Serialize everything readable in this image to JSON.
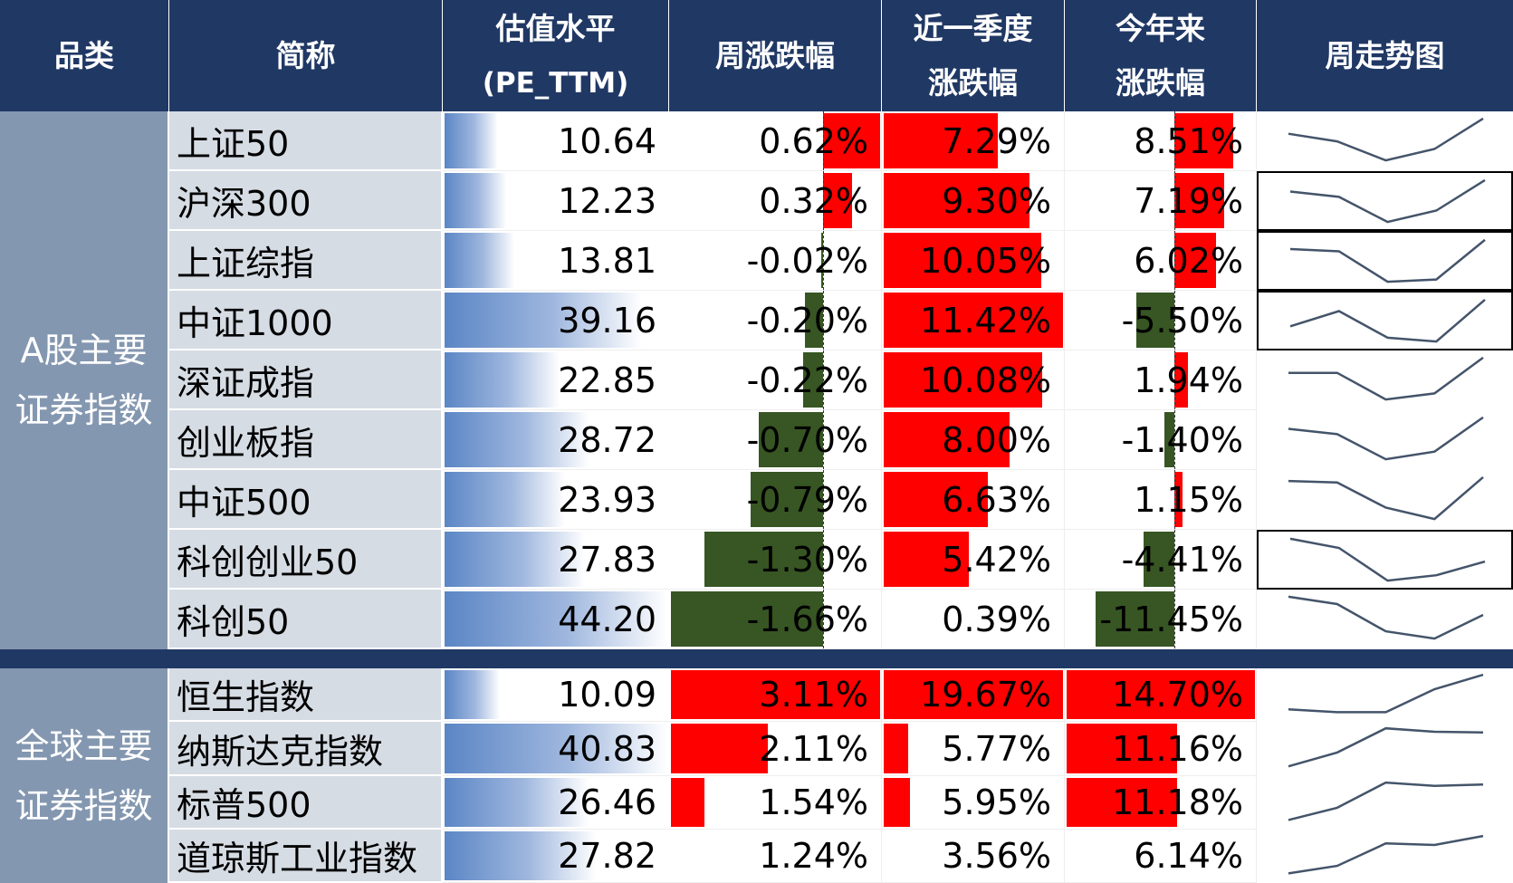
{
  "colors": {
    "header_bg": "#203864",
    "category_bg": "#8497b0",
    "name_bg": "#d6dce4",
    "positive": "#ff0000",
    "negative": "#375623",
    "pe_bar": "#5b86c5",
    "sparkline": "#44546a"
  },
  "header": {
    "category": "品类",
    "name": "简称",
    "pe_line1": "估值水平",
    "pe_line2": "(PE_TTM)",
    "week": "周涨跌幅",
    "quarter_line1": "近一季度",
    "quarter_line2": "涨跌幅",
    "ytd_line1": "今年来",
    "ytd_line2": "涨跌幅",
    "trend": "周走势图"
  },
  "groups": [
    {
      "category_line1": "A股主要",
      "category_line2": "证券指数",
      "rows": [
        {
          "name": "上证50",
          "pe": "10.64",
          "week": "0.62%",
          "quarter": "7.29%",
          "ytd": "8.51%",
          "trend": [
            4,
            3,
            0.5,
            2,
            6
          ],
          "boxed": false
        },
        {
          "name": "沪深300",
          "pe": "12.23",
          "week": "0.32%",
          "quarter": "9.30%",
          "ytd": "7.19%",
          "trend": [
            4.5,
            3.8,
            0.5,
            2,
            6
          ],
          "boxed": true
        },
        {
          "name": "上证综指",
          "pe": "13.81",
          "week": "-0.02%",
          "quarter": "10.05%",
          "ytd": "6.02%",
          "trend": [
            4.8,
            4.5,
            0.5,
            0.8,
            6
          ],
          "boxed": true
        },
        {
          "name": "中证1000",
          "pe": "39.16",
          "week": "-0.20%",
          "quarter": "11.42%",
          "ytd": "-5.50%",
          "trend": [
            2.5,
            4.5,
            1,
            0.5,
            6
          ],
          "boxed": true
        },
        {
          "name": "深证成指",
          "pe": "22.85",
          "week": "-0.22%",
          "quarter": "10.08%",
          "ytd": "1.94%",
          "trend": [
            4,
            4,
            0.5,
            1.3,
            6
          ],
          "boxed": false
        },
        {
          "name": "创业板指",
          "pe": "28.72",
          "week": "-0.70%",
          "quarter": "8.00%",
          "ytd": "-1.40%",
          "trend": [
            4.5,
            3.8,
            0.5,
            1.5,
            6
          ],
          "boxed": false
        },
        {
          "name": "中证500",
          "pe": "23.93",
          "week": "-0.79%",
          "quarter": "6.63%",
          "ytd": "1.15%",
          "trend": [
            5.5,
            5.3,
            2,
            0.5,
            6
          ],
          "boxed": false
        },
        {
          "name": "科创创业50",
          "pe": "27.83",
          "week": "-1.30%",
          "quarter": "5.42%",
          "ytd": "-4.41%",
          "trend": [
            6,
            4.8,
            0.5,
            1.2,
            3
          ],
          "boxed": true
        },
        {
          "name": "科创50",
          "pe": "44.20",
          "week": "-1.66%",
          "quarter": "0.39%",
          "ytd": "-11.45%",
          "trend": [
            6,
            5.2,
            2.2,
            1.4,
            4
          ],
          "boxed": false
        }
      ]
    },
    {
      "category_line1": "全球主要",
      "category_line2": "证券指数",
      "rows": [
        {
          "name": "恒生指数",
          "pe": "10.09",
          "week": "3.11%",
          "quarter": "19.67%",
          "ytd": "14.70%",
          "trend": [
            1.2,
            0.8,
            0.8,
            4,
            6
          ],
          "boxed": false
        },
        {
          "name": "纳斯达克指数",
          "pe": "40.83",
          "week": "2.11%",
          "quarter": "5.77%",
          "ytd": "11.16%",
          "trend": [
            0.5,
            2.5,
            6,
            5.5,
            5.4
          ],
          "boxed": false
        },
        {
          "name": "标普500",
          "pe": "26.46",
          "week": "1.54%",
          "quarter": "5.95%",
          "ytd": "11.18%",
          "trend": [
            0.5,
            2.3,
            6,
            5.5,
            5.7
          ],
          "boxed": false
        },
        {
          "name": "道琼斯工业指数",
          "pe": "27.82",
          "week": "1.24%",
          "quarter": "3.56%",
          "ytd": "6.14%",
          "trend": [
            0.5,
            1.5,
            4.5,
            4.3,
            5.5
          ],
          "boxed": false
        }
      ]
    }
  ],
  "chart_data": {
    "type": "table",
    "title": "",
    "columns": [
      "品类",
      "简称",
      "估值水平(PE_TTM)",
      "周涨跌幅",
      "近一季度涨跌幅",
      "今年来涨跌幅",
      "周走势图"
    ],
    "series": [
      {
        "category": "A股主要证券指数",
        "name": "上证50",
        "pe_ttm": 10.64,
        "week_pct": 0.62,
        "quarter_pct": 7.29,
        "ytd_pct": 8.51
      },
      {
        "category": "A股主要证券指数",
        "name": "沪深300",
        "pe_ttm": 12.23,
        "week_pct": 0.32,
        "quarter_pct": 9.3,
        "ytd_pct": 7.19
      },
      {
        "category": "A股主要证券指数",
        "name": "上证综指",
        "pe_ttm": 13.81,
        "week_pct": -0.02,
        "quarter_pct": 10.05,
        "ytd_pct": 6.02
      },
      {
        "category": "A股主要证券指数",
        "name": "中证1000",
        "pe_ttm": 39.16,
        "week_pct": -0.2,
        "quarter_pct": 11.42,
        "ytd_pct": -5.5
      },
      {
        "category": "A股主要证券指数",
        "name": "深证成指",
        "pe_ttm": 22.85,
        "week_pct": -0.22,
        "quarter_pct": 10.08,
        "ytd_pct": 1.94
      },
      {
        "category": "A股主要证券指数",
        "name": "创业板指",
        "pe_ttm": 28.72,
        "week_pct": -0.7,
        "quarter_pct": 8.0,
        "ytd_pct": -1.4
      },
      {
        "category": "A股主要证券指数",
        "name": "中证500",
        "pe_ttm": 23.93,
        "week_pct": -0.79,
        "quarter_pct": 6.63,
        "ytd_pct": 1.15
      },
      {
        "category": "A股主要证券指数",
        "name": "科创创业50",
        "pe_ttm": 27.83,
        "week_pct": -1.3,
        "quarter_pct": 5.42,
        "ytd_pct": -4.41
      },
      {
        "category": "A股主要证券指数",
        "name": "科创50",
        "pe_ttm": 44.2,
        "week_pct": -1.66,
        "quarter_pct": 0.39,
        "ytd_pct": -11.45
      },
      {
        "category": "全球主要证券指数",
        "name": "恒生指数",
        "pe_ttm": 10.09,
        "week_pct": 3.11,
        "quarter_pct": 19.67,
        "ytd_pct": 14.7
      },
      {
        "category": "全球主要证券指数",
        "name": "纳斯达克指数",
        "pe_ttm": 40.83,
        "week_pct": 2.11,
        "quarter_pct": 5.77,
        "ytd_pct": 11.16
      },
      {
        "category": "全球主要证券指数",
        "name": "标普500",
        "pe_ttm": 26.46,
        "week_pct": 1.54,
        "quarter_pct": 5.95,
        "ytd_pct": 11.18
      },
      {
        "category": "全球主要证券指数",
        "name": "道琼斯工业指数",
        "pe_ttm": 27.82,
        "week_pct": 1.24,
        "quarter_pct": 3.56,
        "ytd_pct": 6.14
      }
    ]
  }
}
